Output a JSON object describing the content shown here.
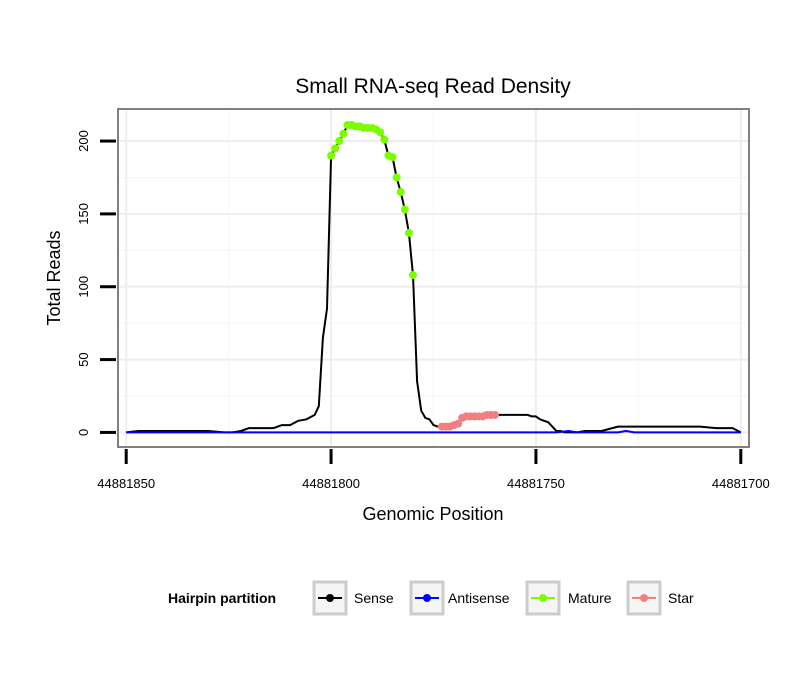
{
  "chart_data": {
    "type": "line",
    "title": "Small RNA-seq Read Density",
    "xlabel": "Genomic Position",
    "ylabel": "Total Reads",
    "xlim": [
      44881852,
      44881698
    ],
    "x_reversed": true,
    "ylim": [
      -10,
      222
    ],
    "x_ticks": [
      44881850,
      44881800,
      44881750,
      44881700
    ],
    "x_tick_labels": [
      "44881850",
      "44881800",
      "44881750",
      "44881700"
    ],
    "y_ticks": [
      0,
      50,
      100,
      150,
      200
    ],
    "y_tick_labels": [
      "0",
      "50",
      "100",
      "150",
      "200"
    ],
    "grid": true,
    "legend": {
      "title": "Hairpin partition",
      "placement": "bottom",
      "entries": [
        {
          "name": "Sense",
          "color": "#000000"
        },
        {
          "name": "Antisense",
          "color": "#0000ff"
        },
        {
          "name": "Mature",
          "color": "#7cfc00"
        },
        {
          "name": "Star",
          "color": "#f08080"
        }
      ]
    },
    "series": [
      {
        "name": "Sense",
        "color": "#000000",
        "style": "line",
        "x": [
          44881850,
          44881847,
          44881844,
          44881840,
          44881835,
          44881830,
          44881826,
          44881824,
          44881822,
          44881820,
          44881818,
          44881816,
          44881814,
          44881812,
          44881810,
          44881808,
          44881806,
          44881804,
          44881803,
          44881802,
          44881801,
          44881800,
          44881799,
          44881798,
          44881797,
          44881796,
          44881795,
          44881794,
          44881793,
          44881792,
          44881791,
          44881790,
          44881789,
          44881788,
          44881787,
          44881786,
          44881785,
          44881784,
          44881783,
          44881782,
          44881781,
          44881780,
          44881779,
          44881778,
          44881777,
          44881776,
          44881775,
          44881774,
          44881773,
          44881772,
          44881771,
          44881770,
          44881769,
          44881768,
          44881767,
          44881766,
          44881765,
          44881764,
          44881763,
          44881762,
          44881761,
          44881760,
          44881759,
          44881758,
          44881757,
          44881756,
          44881755,
          44881754,
          44881753,
          44881752,
          44881751,
          44881750,
          44881749,
          44881748,
          44881747,
          44881746,
          44881745,
          44881744,
          44881743,
          44881742,
          44881741,
          44881740,
          44881738,
          44881734,
          44881730,
          44881726,
          44881722,
          44881718,
          44881714,
          44881710,
          44881706,
          44881702,
          44881700
        ],
        "y": [
          0,
          1,
          1,
          1,
          1,
          1,
          0,
          0,
          1,
          3,
          3,
          3,
          3,
          5,
          5,
          8,
          9,
          12,
          18,
          65,
          85,
          190,
          195,
          200,
          205,
          211,
          211,
          210,
          210,
          209,
          209,
          209,
          208,
          206,
          201,
          190,
          189,
          175,
          165,
          153,
          137,
          108,
          35,
          15,
          10,
          9,
          5,
          4,
          4,
          4,
          4,
          5,
          6,
          10,
          11,
          11,
          11,
          11,
          11,
          12,
          12,
          12,
          12,
          12,
          12,
          12,
          12,
          12,
          12,
          12,
          11,
          11,
          9,
          8,
          7,
          4,
          1,
          1,
          0,
          0,
          0,
          0,
          1,
          1,
          4,
          4,
          4,
          4,
          4,
          4,
          3,
          3,
          0
        ]
      },
      {
        "name": "Antisense",
        "color": "#0000ff",
        "style": "line",
        "x": [
          44881850,
          44881750,
          44881745,
          44881742,
          44881740,
          44881730,
          44881728,
          44881726,
          44881700
        ],
        "y": [
          0,
          0,
          0,
          1,
          0,
          0,
          1,
          0,
          0
        ]
      },
      {
        "name": "Mature",
        "color": "#7cfc00",
        "style": "points",
        "x": [
          44881800,
          44881799,
          44881798,
          44881797,
          44881796,
          44881795,
          44881794,
          44881793,
          44881792,
          44881791,
          44881790,
          44881789,
          44881788,
          44881787,
          44881786,
          44881785,
          44881784,
          44881783,
          44881782,
          44881781,
          44881780
        ],
        "y": [
          190,
          195,
          200,
          205,
          211,
          211,
          210,
          210,
          209,
          209,
          209,
          208,
          206,
          201,
          190,
          189,
          175,
          165,
          153,
          137,
          108
        ]
      },
      {
        "name": "Star",
        "color": "#f08080",
        "style": "points",
        "x": [
          44881773,
          44881772,
          44881771,
          44881770,
          44881769,
          44881768,
          44881767,
          44881766,
          44881765,
          44881764,
          44881763,
          44881762,
          44881761,
          44881760
        ],
        "y": [
          4,
          4,
          4,
          5,
          6,
          10,
          11,
          11,
          11,
          11,
          11,
          12,
          12,
          12
        ]
      }
    ]
  }
}
